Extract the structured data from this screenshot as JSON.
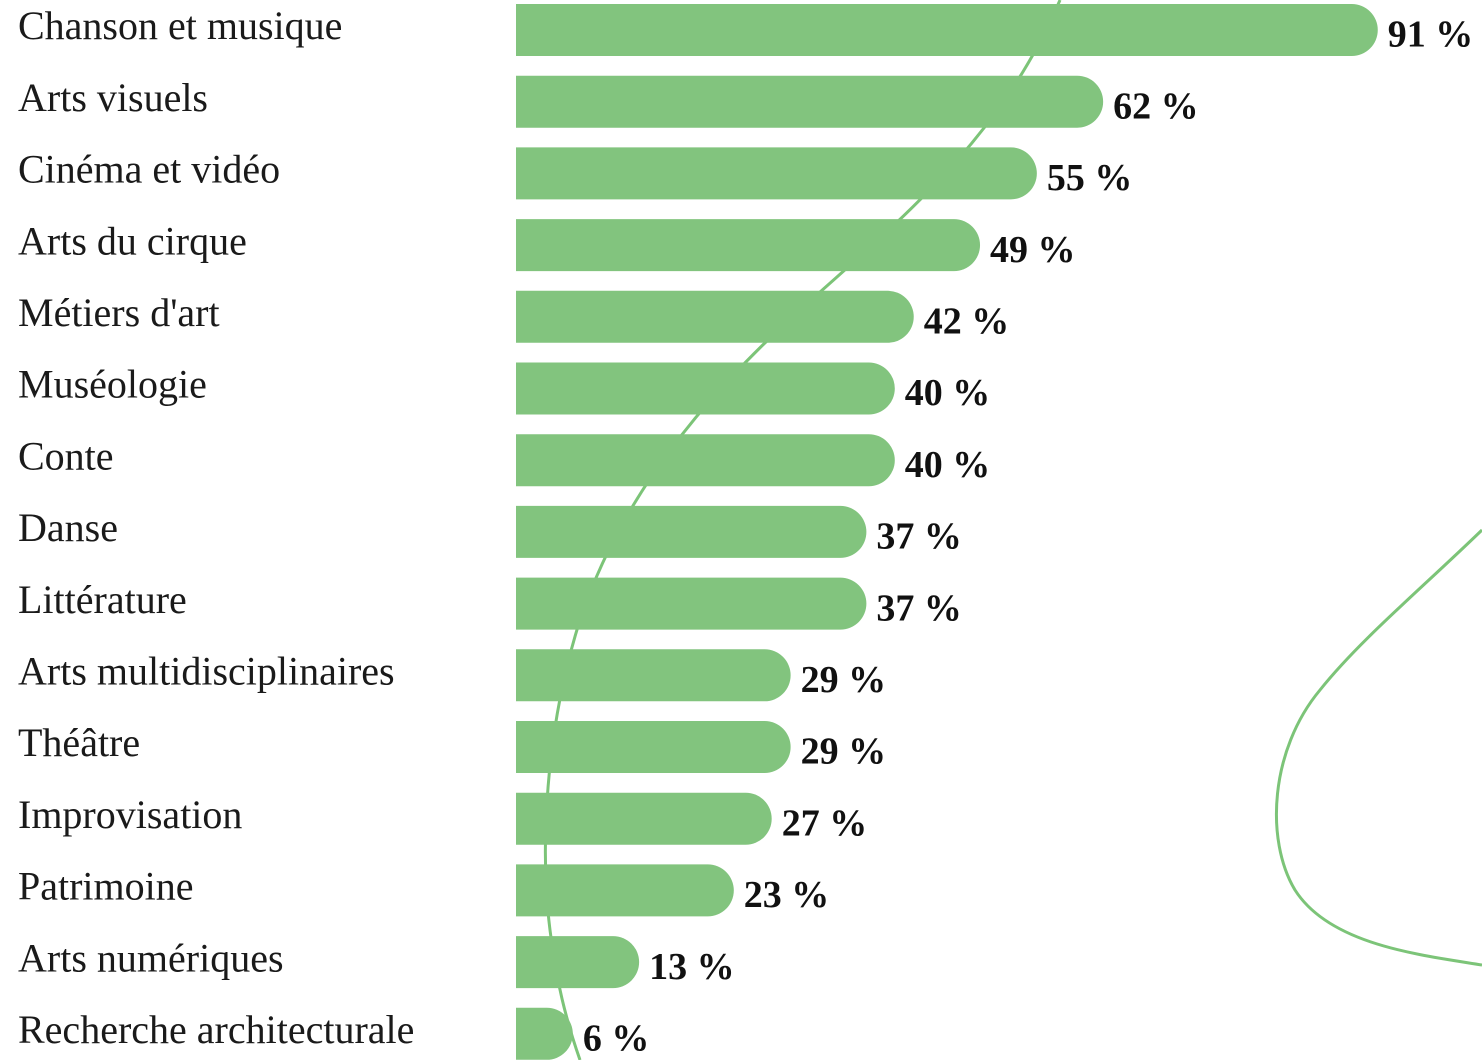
{
  "chart_data": {
    "type": "bar",
    "orientation": "horizontal",
    "color": "#82c47e",
    "categories": [
      "Chanson et musique",
      "Arts visuels",
      "Cinéma et vidéo",
      "Arts du cirque",
      "Métiers d'art",
      "Muséologie",
      "Conte",
      "Danse",
      "Littérature",
      "Arts multidisciplinaires",
      "Théâtre",
      "Improvisation",
      "Patrimoine",
      "Arts numériques",
      "Recherche architecturale"
    ],
    "values": [
      91,
      62,
      55,
      49,
      42,
      40,
      40,
      37,
      37,
      29,
      29,
      27,
      23,
      13,
      6
    ],
    "value_labels": [
      "91 %",
      "62 %",
      "55 %",
      "49 %",
      "42 %",
      "40 %",
      "40 %",
      "37 %",
      "37 %",
      "29 %",
      "29 %",
      "27 %",
      "23 %",
      "13 %",
      "6 %"
    ]
  }
}
